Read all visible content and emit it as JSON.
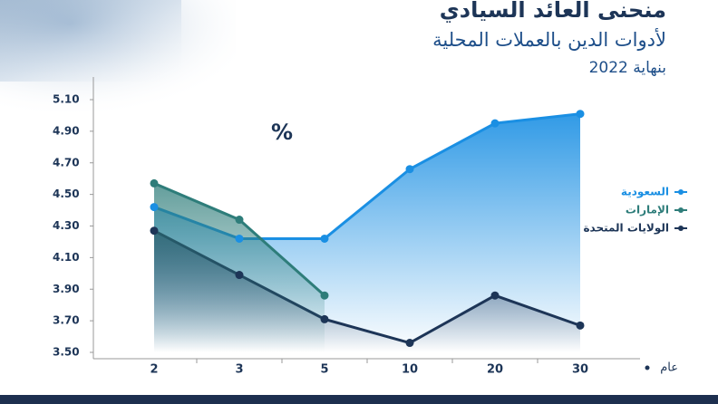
{
  "chart_data": {
    "type": "line",
    "title": "منحنى العائد السيادي",
    "subtitle": "لأدوات الدين بالعملات المحلية",
    "note": "بنهاية 2022",
    "unit_label": "%",
    "x_label": "عام",
    "categories": [
      "2",
      "3",
      "5",
      "10",
      "20",
      "30"
    ],
    "series": [
      {
        "name": "السعودية",
        "color": "#1a8fe3",
        "values": [
          4.42,
          4.22,
          4.22,
          4.66,
          4.95,
          5.01
        ]
      },
      {
        "name": "الإمارات",
        "color": "#2e7d7a",
        "values": [
          4.57,
          4.34,
          3.86,
          null,
          null,
          null
        ]
      },
      {
        "name": "الولايات المتحدة",
        "color": "#1d3557",
        "values": [
          4.27,
          3.99,
          3.71,
          3.56,
          3.86,
          3.67
        ]
      }
    ],
    "ylim": [
      3.5,
      5.1
    ],
    "yticks": [
      {
        "value": 3.5,
        "label": "3.50"
      },
      {
        "value": 3.7,
        "label": "3.70"
      },
      {
        "value": 3.9,
        "label": "3.90"
      },
      {
        "value": 4.1,
        "label": "4.10"
      },
      {
        "value": 4.3,
        "label": "4.30"
      },
      {
        "value": 4.5,
        "label": "4.50"
      },
      {
        "value": 4.7,
        "label": "4.70"
      },
      {
        "value": 4.9,
        "label": "4.90"
      },
      {
        "value": 5.1,
        "label": "5.10"
      }
    ],
    "legend": "right"
  }
}
